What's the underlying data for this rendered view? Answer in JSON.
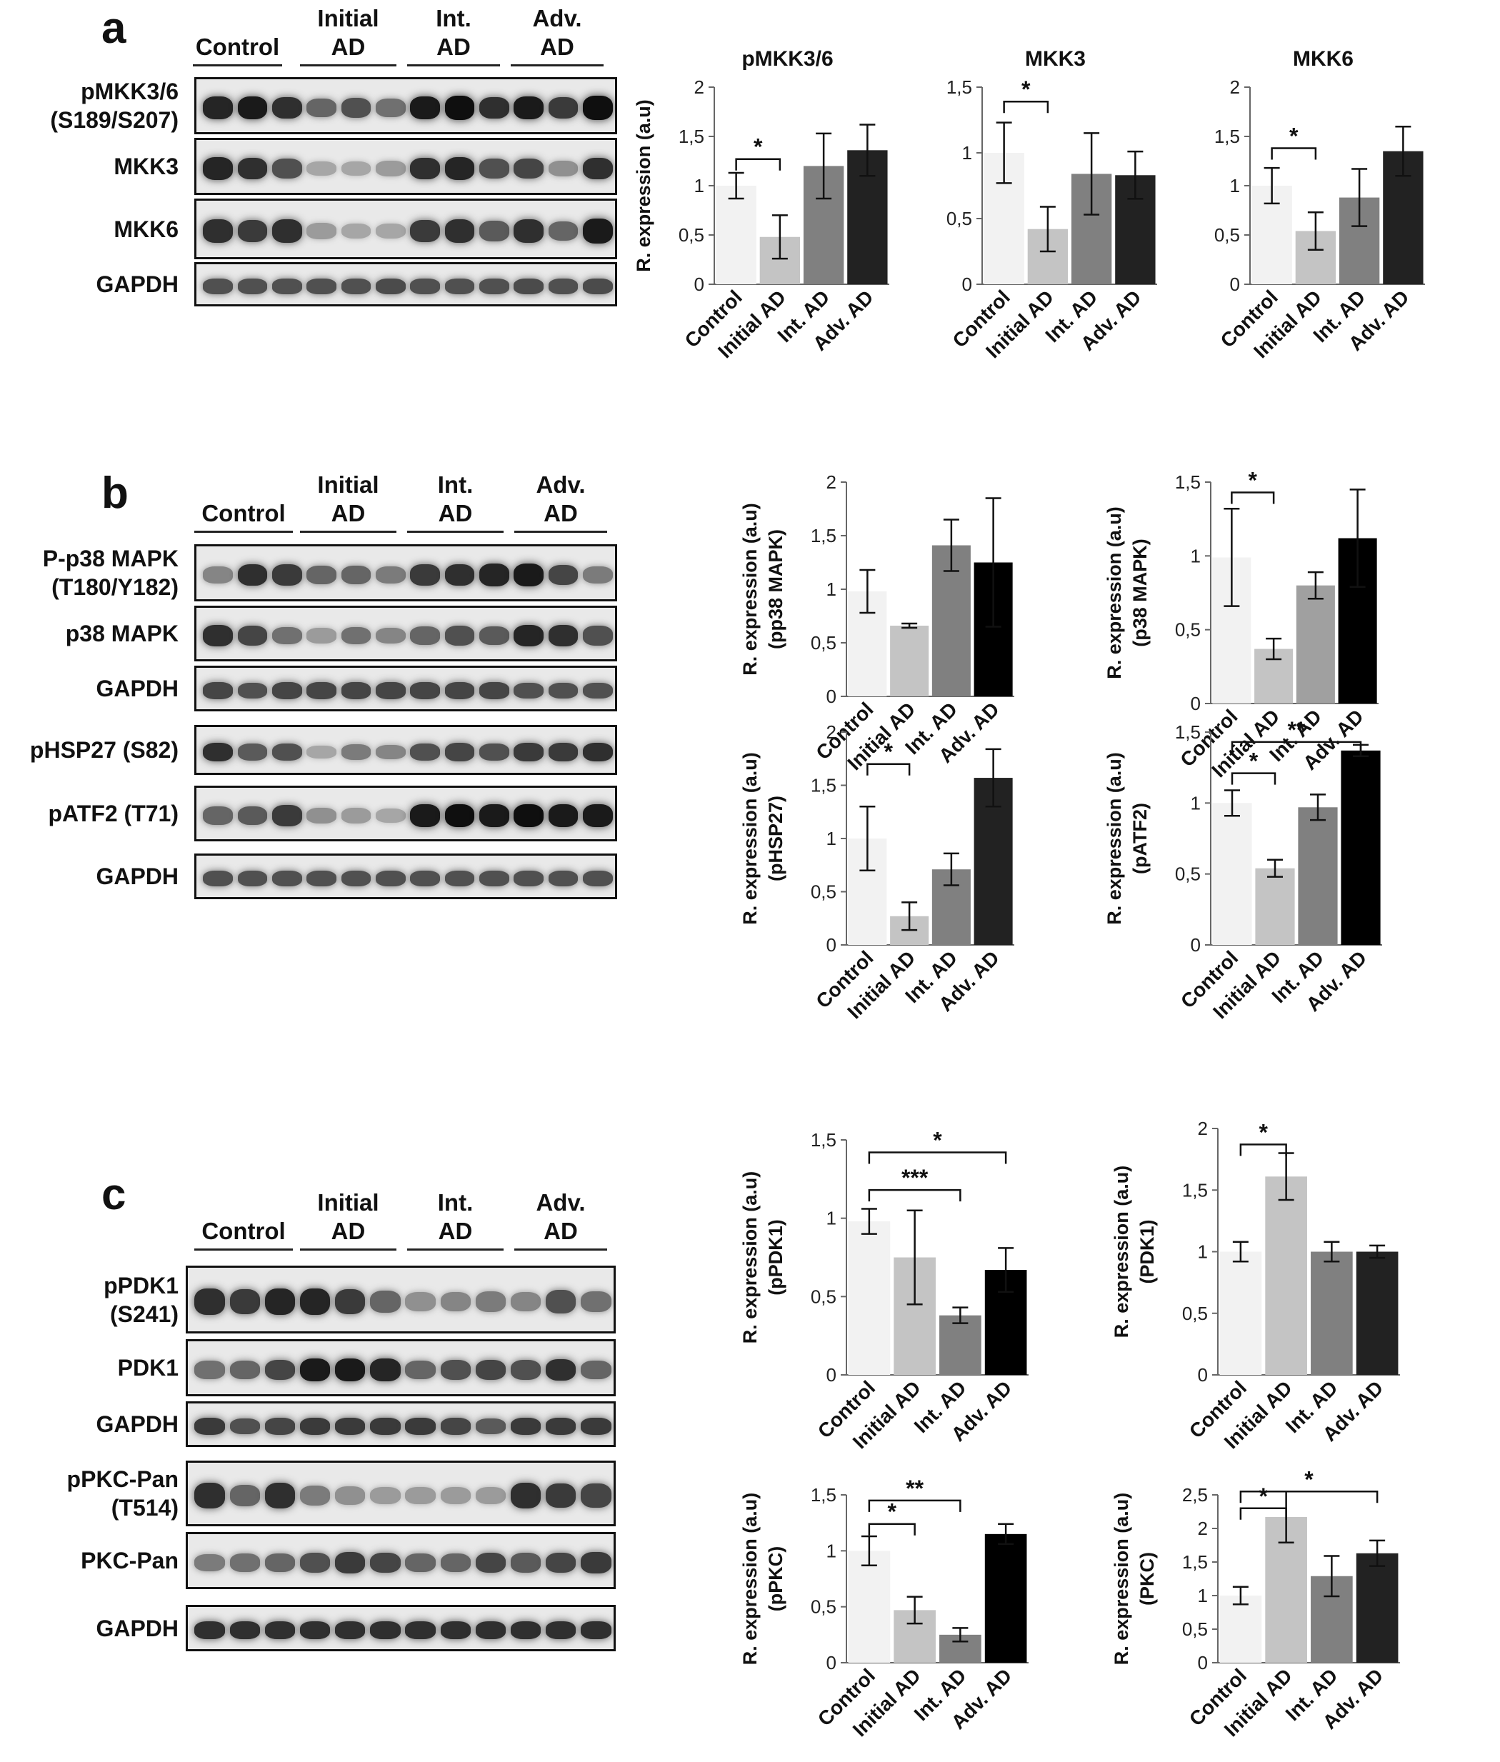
{
  "panels": {
    "a": {
      "letter": "a",
      "groups": [
        {
          "lines": [
            "Control"
          ]
        },
        {
          "lines": [
            "Initial",
            "AD"
          ]
        },
        {
          "lines": [
            "Int.",
            "AD"
          ]
        },
        {
          "lines": [
            "Adv.",
            "AD"
          ]
        }
      ],
      "blots": [
        {
          "lines": [
            "pMKK3/6",
            "(S189/S207)"
          ],
          "intensity": [
            0.9,
            0.95,
            0.85,
            0.6,
            0.7,
            0.55,
            0.95,
            1.0,
            0.85,
            0.95,
            0.8,
            1.0
          ]
        },
        {
          "lines": [
            "MKK3"
          ],
          "intensity": [
            0.9,
            0.85,
            0.7,
            0.3,
            0.3,
            0.35,
            0.85,
            0.9,
            0.7,
            0.75,
            0.4,
            0.85
          ]
        },
        {
          "lines": [
            "MKK6"
          ],
          "intensity": [
            0.85,
            0.8,
            0.85,
            0.35,
            0.3,
            0.3,
            0.8,
            0.85,
            0.65,
            0.85,
            0.6,
            0.95
          ]
        },
        {
          "lines": [
            "GAPDH"
          ],
          "intensity": [
            0.7,
            0.7,
            0.7,
            0.7,
            0.7,
            0.72,
            0.7,
            0.7,
            0.7,
            0.72,
            0.7,
            0.72
          ]
        }
      ]
    },
    "b": {
      "letter": "b",
      "groups": [
        {
          "lines": [
            "Control"
          ]
        },
        {
          "lines": [
            "Initial",
            "AD"
          ]
        },
        {
          "lines": [
            "Int.",
            "AD"
          ]
        },
        {
          "lines": [
            "Adv.",
            "AD"
          ]
        }
      ],
      "blots": [
        {
          "lines": [
            "P-p38 MAPK",
            "(T180/Y182)"
          ],
          "intensity": [
            0.45,
            0.85,
            0.8,
            0.6,
            0.6,
            0.5,
            0.8,
            0.85,
            0.9,
            0.95,
            0.75,
            0.5
          ]
        },
        {
          "lines": [
            "p38 MAPK"
          ],
          "intensity": [
            0.85,
            0.75,
            0.55,
            0.35,
            0.55,
            0.45,
            0.6,
            0.7,
            0.65,
            0.9,
            0.85,
            0.7
          ]
        },
        {
          "lines": [
            "GAPDH"
          ],
          "intensity": [
            0.75,
            0.7,
            0.75,
            0.75,
            0.75,
            0.75,
            0.75,
            0.75,
            0.75,
            0.7,
            0.7,
            0.7
          ]
        },
        {
          "lines": [
            "pHSP27 (S82)"
          ],
          "intensity": [
            0.85,
            0.65,
            0.7,
            0.3,
            0.5,
            0.45,
            0.7,
            0.75,
            0.7,
            0.8,
            0.8,
            0.85
          ]
        },
        {
          "lines": [
            "pATF2 (T71)"
          ],
          "intensity": [
            0.6,
            0.65,
            0.8,
            0.4,
            0.35,
            0.3,
            0.95,
            1.0,
            0.95,
            1.0,
            0.95,
            0.95
          ]
        },
        {
          "lines": [
            "GAPDH"
          ],
          "intensity": [
            0.7,
            0.7,
            0.7,
            0.7,
            0.7,
            0.7,
            0.7,
            0.7,
            0.7,
            0.7,
            0.7,
            0.7
          ]
        }
      ]
    },
    "c": {
      "letter": "c",
      "groups": [
        {
          "lines": [
            "Control"
          ]
        },
        {
          "lines": [
            "Initial",
            "AD"
          ]
        },
        {
          "lines": [
            "Int.",
            "AD"
          ]
        },
        {
          "lines": [
            "Adv.",
            "AD"
          ]
        }
      ],
      "blots": [
        {
          "lines": [
            "pPDK1",
            "(S241)"
          ],
          "intensity": [
            0.85,
            0.8,
            0.9,
            0.9,
            0.8,
            0.6,
            0.4,
            0.45,
            0.5,
            0.45,
            0.7,
            0.55
          ]
        },
        {
          "lines": [
            "PDK1"
          ],
          "intensity": [
            0.55,
            0.6,
            0.75,
            0.95,
            0.95,
            0.9,
            0.6,
            0.7,
            0.75,
            0.7,
            0.85,
            0.6
          ]
        },
        {
          "lines": [
            "GAPDH"
          ],
          "intensity": [
            0.8,
            0.7,
            0.75,
            0.8,
            0.8,
            0.8,
            0.8,
            0.75,
            0.65,
            0.8,
            0.8,
            0.8
          ]
        },
        {
          "lines": [
            "pPKC-Pan",
            "(T514)"
          ],
          "intensity": [
            0.85,
            0.6,
            0.85,
            0.5,
            0.4,
            0.35,
            0.35,
            0.35,
            0.35,
            0.85,
            0.8,
            0.75
          ]
        },
        {
          "lines": [
            "PKC-Pan"
          ],
          "intensity": [
            0.5,
            0.55,
            0.6,
            0.7,
            0.8,
            0.75,
            0.6,
            0.6,
            0.75,
            0.65,
            0.75,
            0.8
          ]
        },
        {
          "lines": [
            "GAPDH"
          ],
          "intensity": [
            0.85,
            0.85,
            0.85,
            0.85,
            0.85,
            0.85,
            0.85,
            0.85,
            0.85,
            0.85,
            0.85,
            0.85
          ]
        }
      ]
    }
  },
  "colors": [
    "#f2f2f2",
    "#c4c4c4",
    "#808080",
    "#222222"
  ],
  "chart_data": [
    {
      "type": "bar",
      "title": "pMKK3/6",
      "categories": [
        "Control",
        "Initial AD",
        "Int. AD",
        "Adv. AD"
      ],
      "values": [
        1.0,
        0.48,
        1.2,
        1.36
      ],
      "errors": [
        0.13,
        0.22,
        0.33,
        0.26
      ],
      "ylabel": "R. expression (a.u)",
      "ylim": [
        0,
        2
      ],
      "yticks": [
        "0",
        "0,5",
        "1",
        "1,5",
        "2"
      ],
      "ytick_values": [
        0,
        0.5,
        1,
        1.5,
        2
      ],
      "colors": [
        "#f2f2f2",
        "#c4c4c4",
        "#808080",
        "#222222"
      ],
      "sig": [
        {
          "from": 0,
          "to": 1,
          "y": 1.27,
          "label": "*"
        }
      ]
    },
    {
      "type": "bar",
      "title": "MKK3",
      "categories": [
        "Control",
        "Initial AD",
        "Int. AD",
        "Adv. AD"
      ],
      "values": [
        1.0,
        0.42,
        0.84,
        0.83
      ],
      "errors": [
        0.23,
        0.17,
        0.31,
        0.18
      ],
      "ylabel": "",
      "ylim": [
        0,
        1.5
      ],
      "yticks": [
        "0",
        "0,5",
        "1",
        "1,5"
      ],
      "ytick_values": [
        0,
        0.5,
        1,
        1.5
      ],
      "colors": [
        "#f2f2f2",
        "#c4c4c4",
        "#808080",
        "#222222"
      ],
      "sig": [
        {
          "from": 0,
          "to": 1,
          "y": 1.39,
          "label": "*"
        }
      ]
    },
    {
      "type": "bar",
      "title": "MKK6",
      "categories": [
        "Control",
        "Initial AD",
        "Int. AD",
        "Adv. AD"
      ],
      "values": [
        1.0,
        0.54,
        0.88,
        1.35
      ],
      "errors": [
        0.18,
        0.19,
        0.29,
        0.25
      ],
      "ylabel": "",
      "ylim": [
        0,
        2
      ],
      "yticks": [
        "0",
        "0,5",
        "1",
        "1,5",
        "2"
      ],
      "ytick_values": [
        0,
        0.5,
        1,
        1.5,
        2
      ],
      "colors": [
        "#f2f2f2",
        "#c4c4c4",
        "#808080",
        "#222222"
      ],
      "sig": [
        {
          "from": 0,
          "to": 1,
          "y": 1.38,
          "label": "*"
        }
      ]
    },
    {
      "type": "bar",
      "title": "",
      "categories": [
        "Control",
        "Initial AD",
        "Int. AD",
        "Adv. AD"
      ],
      "values": [
        0.98,
        0.66,
        1.41,
        1.25
      ],
      "errors": [
        0.2,
        0.02,
        0.24,
        0.6
      ],
      "ylabel": "R. expression (a.u)\n(pp38 MAPK)",
      "ylim": [
        0,
        2
      ],
      "yticks": [
        "0",
        "0,5",
        "1",
        "1,5",
        "2"
      ],
      "ytick_values": [
        0,
        0.5,
        1,
        1.5,
        2
      ],
      "colors": [
        "#f2f2f2",
        "#c4c4c4",
        "#808080",
        "#000000"
      ],
      "sig": []
    },
    {
      "type": "bar",
      "title": "",
      "categories": [
        "Control",
        "Initial AD",
        "Int. AD",
        "Adv. AD"
      ],
      "values": [
        0.99,
        0.37,
        0.8,
        1.12
      ],
      "errors": [
        0.33,
        0.07,
        0.09,
        0.33
      ],
      "ylabel": "R. expression (a.u)\n(p38 MAPK)",
      "ylim": [
        0,
        1.5
      ],
      "yticks": [
        "0",
        "0,5",
        "1",
        "1,5"
      ],
      "ytick_values": [
        0,
        0.5,
        1,
        1.5
      ],
      "colors": [
        "#f2f2f2",
        "#c4c4c4",
        "#a0a0a0",
        "#000000"
      ],
      "sig": [
        {
          "from": 0,
          "to": 1,
          "y": 1.43,
          "label": "*"
        }
      ]
    },
    {
      "type": "bar",
      "title": "",
      "categories": [
        "Control",
        "Initial AD",
        "Int. AD",
        "Adv. AD"
      ],
      "values": [
        1.0,
        0.27,
        0.71,
        1.57
      ],
      "errors": [
        0.3,
        0.13,
        0.15,
        0.27
      ],
      "ylabel": "R. expression (a.u)\n(pHSP27)",
      "ylim": [
        0,
        2
      ],
      "yticks": [
        "0",
        "0,5",
        "1",
        "1,5",
        "2"
      ],
      "ytick_values": [
        0,
        0.5,
        1,
        1.5,
        2
      ],
      "colors": [
        "#f2f2f2",
        "#c4c4c4",
        "#808080",
        "#222222"
      ],
      "sig": [
        {
          "from": 0,
          "to": 1,
          "y": 1.7,
          "label": "*"
        }
      ]
    },
    {
      "type": "bar",
      "title": "",
      "categories": [
        "Control",
        "Initial AD",
        "Int. AD",
        "Adv. AD"
      ],
      "values": [
        1.0,
        0.54,
        0.97,
        1.37
      ],
      "errors": [
        0.09,
        0.06,
        0.09,
        0.04
      ],
      "ylabel": "R. expression (a.u)\n(pATF2)",
      "ylim": [
        0,
        1.5
      ],
      "yticks": [
        "0",
        "0,5",
        "1",
        "1,5"
      ],
      "ytick_values": [
        0,
        0.5,
        1,
        1.5
      ],
      "colors": [
        "#f2f2f2",
        "#c4c4c4",
        "#808080",
        "#000000"
      ],
      "sig": [
        {
          "from": 0,
          "to": 1,
          "y": 1.21,
          "label": "*"
        },
        {
          "from": 0,
          "to": 3,
          "y": 1.43,
          "label": "**"
        }
      ]
    },
    {
      "type": "bar",
      "title": "",
      "categories": [
        "Control",
        "Initial AD",
        "Int. AD",
        "Adv. AD"
      ],
      "values": [
        0.98,
        0.75,
        0.38,
        0.67
      ],
      "errors": [
        0.08,
        0.3,
        0.05,
        0.14
      ],
      "ylabel": "R. expression (a.u)\n(pPDK1)",
      "ylim": [
        0,
        1.5
      ],
      "yticks": [
        "0",
        "0,5",
        "1",
        "1,5"
      ],
      "ytick_values": [
        0,
        0.5,
        1,
        1.5
      ],
      "colors": [
        "#f2f2f2",
        "#c4c4c4",
        "#808080",
        "#000000"
      ],
      "sig": [
        {
          "from": 0,
          "to": 2,
          "y": 1.18,
          "label": "***"
        },
        {
          "from": 0,
          "to": 3,
          "y": 1.42,
          "label": "*"
        }
      ]
    },
    {
      "type": "bar",
      "title": "",
      "categories": [
        "Control",
        "Initial AD",
        "Int. AD",
        "Adv. AD"
      ],
      "values": [
        1.0,
        1.61,
        1.0,
        1.0
      ],
      "errors": [
        0.08,
        0.19,
        0.08,
        0.05
      ],
      "ylabel": "R. expression (a.u)\n(PDK1)",
      "ylim": [
        0,
        2
      ],
      "yticks": [
        "0",
        "0,5",
        "1",
        "1,5",
        "2"
      ],
      "ytick_values": [
        0,
        0.5,
        1,
        1.5,
        2
      ],
      "colors": [
        "#f2f2f2",
        "#c4c4c4",
        "#808080",
        "#222222"
      ],
      "sig": [
        {
          "from": 0,
          "to": 1,
          "y": 1.87,
          "label": "*"
        }
      ]
    },
    {
      "type": "bar",
      "title": "",
      "categories": [
        "Control",
        "Initial AD",
        "Int. AD",
        "Adv. AD"
      ],
      "values": [
        1.0,
        0.47,
        0.25,
        1.15
      ],
      "errors": [
        0.13,
        0.12,
        0.06,
        0.09
      ],
      "ylabel": "R. expression (a.u)\n(pPKC)",
      "ylim": [
        0,
        1.5
      ],
      "yticks": [
        "0",
        "0,5",
        "1",
        "1,5"
      ],
      "ytick_values": [
        0,
        0.5,
        1,
        1.5
      ],
      "colors": [
        "#f2f2f2",
        "#c4c4c4",
        "#808080",
        "#000000"
      ],
      "sig": [
        {
          "from": 0,
          "to": 1,
          "y": 1.24,
          "label": "*"
        },
        {
          "from": 0,
          "to": 2,
          "y": 1.45,
          "label": "**"
        }
      ]
    },
    {
      "type": "bar",
      "title": "",
      "categories": [
        "Control",
        "Initial AD",
        "Int. AD",
        "Adv. AD"
      ],
      "values": [
        1.0,
        2.17,
        1.29,
        1.63
      ],
      "errors": [
        0.13,
        0.38,
        0.3,
        0.19
      ],
      "ylabel": "R. expression (a.u)\n(PKC)",
      "ylim": [
        0,
        2.5
      ],
      "yticks": [
        "0",
        "0,5",
        "1",
        "1,5",
        "2",
        "2,5"
      ],
      "ytick_values": [
        0,
        0.5,
        1,
        1.5,
        2,
        2.5
      ],
      "colors": [
        "#f2f2f2",
        "#c4c4c4",
        "#808080",
        "#222222"
      ],
      "sig": [
        {
          "from": 0,
          "to": 1,
          "y": 2.3,
          "label": "*"
        },
        {
          "from": 0,
          "to": 3,
          "y": 2.55,
          "label": "*"
        }
      ]
    }
  ]
}
